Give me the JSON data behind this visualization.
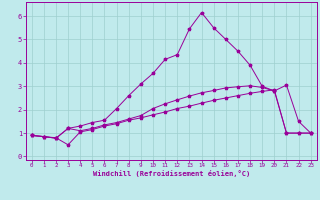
{
  "title": "",
  "xlabel": "Windchill (Refroidissement éolien,°C)",
  "background_color": "#c0eaec",
  "grid_color": "#9ecfcf",
  "line_color": "#990099",
  "xlim": [
    -0.5,
    23.5
  ],
  "ylim": [
    -0.15,
    6.6
  ],
  "xticks": [
    0,
    1,
    2,
    3,
    4,
    5,
    6,
    7,
    8,
    9,
    10,
    11,
    12,
    13,
    14,
    15,
    16,
    17,
    18,
    19,
    20,
    21,
    22,
    23
  ],
  "yticks": [
    0,
    1,
    2,
    3,
    4,
    5,
    6
  ],
  "series1_x": [
    0,
    1,
    2,
    3,
    4,
    5,
    6,
    7,
    8,
    9,
    10,
    11,
    12,
    13,
    14,
    15,
    16,
    17,
    18,
    19,
    20,
    21,
    22,
    23
  ],
  "series1_y": [
    0.9,
    0.85,
    0.8,
    0.5,
    1.05,
    1.15,
    1.3,
    1.4,
    1.55,
    1.65,
    1.78,
    1.9,
    2.05,
    2.15,
    2.28,
    2.4,
    2.5,
    2.6,
    2.7,
    2.78,
    2.85,
    1.0,
    1.0,
    1.0
  ],
  "series2_x": [
    0,
    1,
    2,
    3,
    4,
    5,
    6,
    7,
    8,
    9,
    10,
    11,
    12,
    13,
    14,
    15,
    16,
    17,
    18,
    19,
    20,
    21,
    22,
    23
  ],
  "series2_y": [
    0.9,
    0.85,
    0.78,
    1.2,
    1.3,
    1.45,
    1.55,
    2.05,
    2.6,
    3.1,
    3.55,
    4.15,
    4.35,
    5.45,
    6.15,
    5.5,
    5.0,
    4.5,
    3.9,
    3.0,
    2.8,
    3.05,
    1.5,
    1.0
  ],
  "series3_x": [
    0,
    1,
    2,
    3,
    4,
    5,
    6,
    7,
    8,
    9,
    10,
    11,
    12,
    13,
    14,
    15,
    16,
    17,
    18,
    19,
    20,
    21,
    22,
    23
  ],
  "series3_y": [
    0.9,
    0.85,
    0.78,
    1.2,
    1.1,
    1.2,
    1.35,
    1.45,
    1.6,
    1.75,
    2.05,
    2.25,
    2.42,
    2.58,
    2.72,
    2.82,
    2.93,
    2.98,
    3.02,
    2.95,
    2.8,
    1.0,
    1.0,
    1.0
  ]
}
